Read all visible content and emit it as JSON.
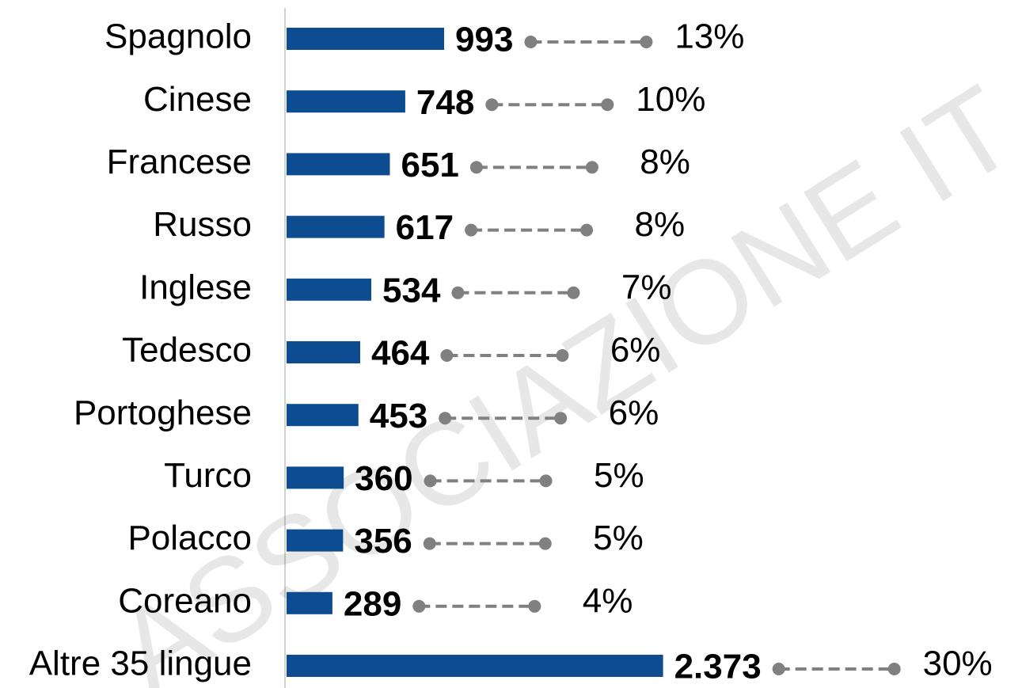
{
  "chart_data": {
    "type": "bar",
    "orientation": "horizontal",
    "categories": [
      "Spagnolo",
      "Cinese",
      "Francese",
      "Russo",
      "Inglese",
      "Tedesco",
      "Portoghese",
      "Turco",
      "Polacco",
      "Coreano",
      "Altre 35 lingue"
    ],
    "values": [
      993,
      748,
      651,
      617,
      534,
      464,
      453,
      360,
      356,
      289,
      2373
    ],
    "value_labels": [
      "993",
      "748",
      "651",
      "617",
      "534",
      "464",
      "453",
      "360",
      "356",
      "289",
      "2.373"
    ],
    "shares": [
      13,
      10,
      8,
      8,
      7,
      6,
      6,
      5,
      5,
      4,
      30
    ],
    "share_labels": [
      "13%",
      "10%",
      "8%",
      "8%",
      "7%",
      "6%",
      "6%",
      "5%",
      "5%",
      "4%",
      "30%"
    ],
    "color": "#0e4c92",
    "connector_color": "#808080",
    "xlim": [
      0,
      2400
    ],
    "watermark": "ASSOCIAZIONE IT"
  }
}
